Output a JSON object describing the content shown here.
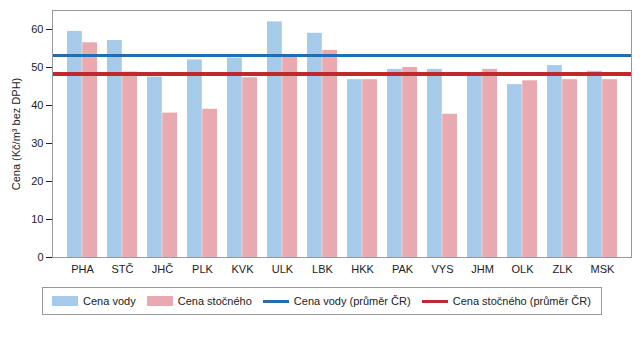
{
  "chart_data": {
    "type": "bar",
    "categories": [
      "PHA",
      "STČ",
      "JHČ",
      "PLK",
      "KVK",
      "ULK",
      "LBK",
      "HKK",
      "PAK",
      "VYS",
      "JHM",
      "OLK",
      "ZLK",
      "MSK"
    ],
    "series": [
      {
        "name": "Cena vody",
        "type": "bar",
        "color": "#a6cbea",
        "values": [
          59.5,
          57.1,
          47.5,
          52.0,
          52.5,
          62.0,
          59.0,
          46.8,
          49.5,
          49.5,
          48.3,
          45.5,
          50.5,
          49.0
        ]
      },
      {
        "name": "Cena stočného",
        "type": "bar",
        "color": "#e8a9b0",
        "values": [
          56.5,
          48.8,
          38.0,
          39.0,
          47.3,
          52.8,
          54.5,
          46.8,
          50.0,
          37.7,
          49.5,
          46.5,
          46.8,
          46.8
        ]
      },
      {
        "name": "Cena vody (průměr ČR)",
        "type": "line",
        "color": "#1f6fb4",
        "values": [
          53.2,
          53.2,
          53.2,
          53.2,
          53.2,
          53.2,
          53.2,
          53.2,
          53.2,
          53.2,
          53.2,
          53.2,
          53.2,
          53.2
        ]
      },
      {
        "name": "Cena stočného (průměr ČR)",
        "type": "line",
        "color": "#c0282e",
        "values": [
          48.3,
          48.3,
          48.3,
          48.3,
          48.3,
          48.3,
          48.3,
          48.3,
          48.3,
          48.3,
          48.3,
          48.3,
          48.3,
          48.3
        ]
      }
    ],
    "y_label": "Cena (Kč/m³ bez DPH)",
    "ylim": [
      0,
      65
    ],
    "yticks": [
      0,
      10,
      20,
      30,
      40,
      50,
      60
    ],
    "grid": false,
    "legend": "bottom"
  }
}
